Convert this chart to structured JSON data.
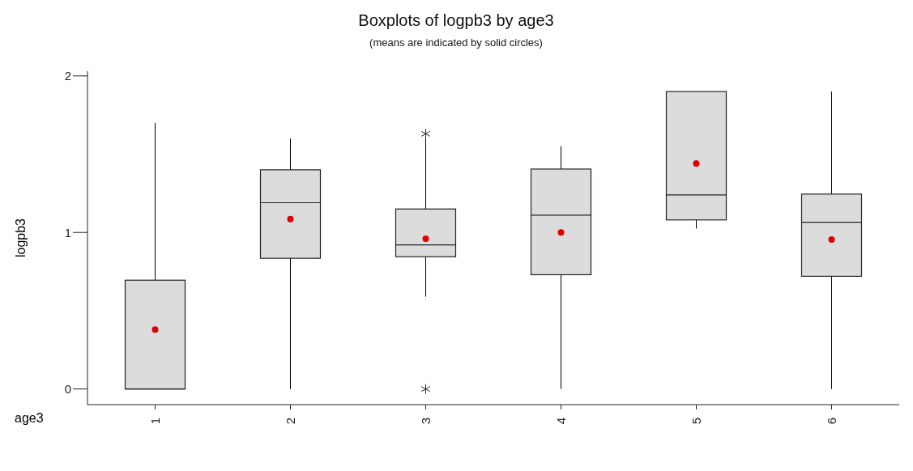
{
  "chart_data": {
    "type": "box",
    "title": "Boxplots of logpb3 by age3",
    "subtitle": "(means are indicated by solid circles)",
    "xlabel": "age3",
    "ylabel": "logpb3",
    "categories": [
      "1",
      "2",
      "3",
      "4",
      "5",
      "6"
    ],
    "ylim": [
      -0.1,
      2.03
    ],
    "yticks": [
      0,
      1,
      2
    ],
    "series": [
      {
        "color": "#dcdcdc",
        "boxes": [
          {
            "low": 0,
            "q1": 0,
            "median": 0,
            "q3": 0.695,
            "high": 1.7,
            "mean": 0.38
          },
          {
            "low": 0,
            "q1": 0.835,
            "median": 1.19,
            "q3": 1.4,
            "high": 1.6,
            "mean": 1.085
          },
          {
            "low": 0.59,
            "q1": 0.845,
            "median": 0.92,
            "q3": 1.15,
            "high": 1.6,
            "mean": 0.96,
            "outliers": [
              1.63,
              0
            ]
          },
          {
            "low": 0,
            "q1": 0.73,
            "median": 1.11,
            "q3": 1.405,
            "high": 1.55,
            "mean": 1.0
          },
          {
            "low": 1.025,
            "q1": 1.08,
            "median": 1.24,
            "q3": 1.9,
            "high": 1.9,
            "mean": 1.44
          },
          {
            "low": 0,
            "q1": 0.72,
            "median": 1.065,
            "q3": 1.245,
            "high": 1.9,
            "mean": 0.955
          }
        ]
      }
    ]
  }
}
